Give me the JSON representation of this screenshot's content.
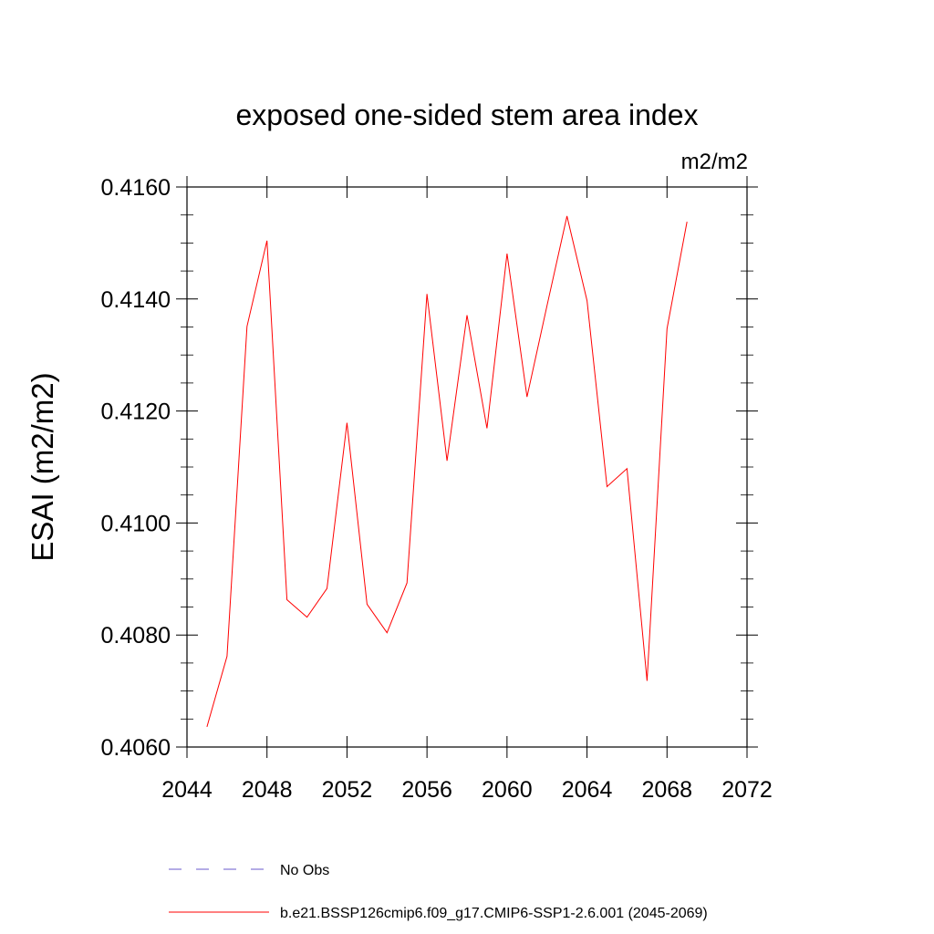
{
  "chart_data": {
    "type": "line",
    "title": "exposed one-sided stem area index",
    "units": "m2/m2",
    "ylabel": "ESAI  (m2/m2)",
    "xlabel": "",
    "xlim": [
      2044,
      2072
    ],
    "ylim": [
      0.406,
      0.416
    ],
    "x_ticks": [
      "2044",
      "2048",
      "2052",
      "2056",
      "2060",
      "2064",
      "2068",
      "2072"
    ],
    "y_ticks": [
      "0.4060",
      "0.4080",
      "0.4100",
      "0.4120",
      "0.4140",
      "0.4160"
    ],
    "x_tick_values": [
      2044,
      2048,
      2052,
      2056,
      2060,
      2064,
      2068,
      2072
    ],
    "y_tick_values": [
      0.406,
      0.408,
      0.41,
      0.412,
      0.414,
      0.416
    ],
    "series": [
      {
        "name": "b.e21.BSSP126cmip6.f09_g17.CMIP6-SSP1-2.6.001 (2045-2069)",
        "color": "#ff0000",
        "x": [
          2045,
          2046,
          2047,
          2048,
          2049,
          2050,
          2051,
          2052,
          2053,
          2054,
          2055,
          2056,
          2057,
          2058,
          2059,
          2060,
          2061,
          2062,
          2063,
          2064,
          2065,
          2066,
          2067,
          2068,
          2069
        ],
        "y": [
          0.40636,
          0.40762,
          0.41351,
          0.41504,
          0.40863,
          0.40832,
          0.40883,
          0.41179,
          0.40855,
          0.40804,
          0.40893,
          0.41409,
          0.41111,
          0.41371,
          0.41169,
          0.41481,
          0.41225,
          0.41388,
          0.41548,
          0.41397,
          0.41065,
          0.41097,
          0.40718,
          0.41347,
          0.41538
        ]
      }
    ],
    "legend": [
      {
        "label": "No Obs",
        "color": "#6a5acd",
        "style": "dashed"
      },
      {
        "label": "b.e21.BSSP126cmip6.f09_g17.CMIP6-SSP1-2.6.001 (2045-2069)",
        "color": "#ff0000",
        "style": "solid"
      }
    ],
    "grid": false,
    "legend_position": "bottom"
  }
}
